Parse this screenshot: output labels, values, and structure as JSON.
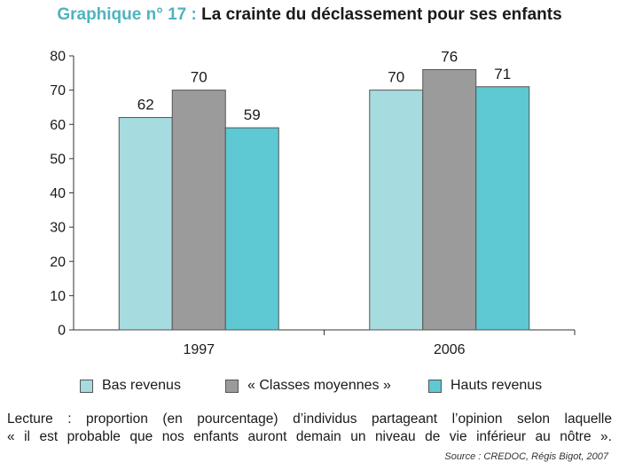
{
  "title": {
    "prefix": "Graphique n° 17 :",
    "main": "La crainte du déclassement pour ses enfants"
  },
  "chart_data": {
    "type": "bar",
    "categories": [
      "1997",
      "2006"
    ],
    "series": [
      {
        "name": "Bas revenus",
        "values": [
          62,
          70
        ],
        "color": "#a6dbe0"
      },
      {
        "name": "« Classes moyennes »",
        "values": [
          70,
          76
        ],
        "color": "#9b9b9b"
      },
      {
        "name": "Hauts revenus",
        "values": [
          59,
          71
        ],
        "color": "#5ec8d3"
      }
    ],
    "ylim": [
      0,
      80
    ],
    "yticks": [
      0,
      10,
      20,
      30,
      40,
      50,
      60,
      70,
      80
    ],
    "grid": false,
    "legend_position": "bottom"
  },
  "reading": {
    "line1": "Lecture : proportion (en pourcentage) d’individus partageant l’opinion selon laquelle",
    "line2": "« il est probable que nos enfants auront demain un niveau de vie inférieur au nôtre »."
  },
  "source": "Source : CREDOC, Régis Bigot, 2007"
}
